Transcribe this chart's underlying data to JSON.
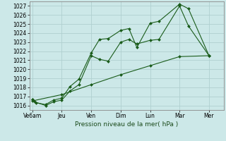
{
  "title": "",
  "xlabel": "Pression niveau de la mer( hPa )",
  "background_color": "#cce8e8",
  "grid_color": "#b0d0d0",
  "line_color": "#1a5c1a",
  "marker_color": "#1a5c1a",
  "ylim": [
    1015.5,
    1027.5
  ],
  "yticks": [
    1016,
    1017,
    1018,
    1019,
    1020,
    1021,
    1022,
    1023,
    1024,
    1025,
    1026,
    1027
  ],
  "x_labels": [
    "Ve6am",
    "Jeu",
    "Ven",
    "Dim",
    "Lun",
    "Mar",
    "Mer"
  ],
  "x_positions": [
    0,
    1,
    2,
    3,
    4,
    5,
    6
  ],
  "xlim": [
    -0.1,
    6.5
  ],
  "line1_x": [
    0.0,
    0.08,
    0.45,
    0.72,
    1.0,
    1.28,
    1.58,
    2.0,
    2.28,
    2.58,
    3.0,
    3.28,
    3.55,
    4.0,
    4.3,
    5.0,
    5.3,
    6.0
  ],
  "line1_y": [
    1016.7,
    1016.4,
    1016.0,
    1016.4,
    1016.6,
    1017.6,
    1018.3,
    1021.5,
    1021.1,
    1020.9,
    1023.0,
    1023.3,
    1022.8,
    1023.2,
    1023.3,
    1027.0,
    1024.8,
    1021.5
  ],
  "line2_x": [
    0.0,
    0.12,
    0.45,
    0.72,
    1.0,
    1.28,
    1.58,
    2.0,
    2.28,
    2.58,
    3.0,
    3.28,
    3.55,
    4.0,
    4.3,
    5.0,
    5.3,
    6.0
  ],
  "line2_y": [
    1016.7,
    1016.3,
    1016.1,
    1016.6,
    1016.8,
    1018.1,
    1018.9,
    1021.8,
    1023.3,
    1023.4,
    1024.3,
    1024.5,
    1022.4,
    1025.1,
    1025.3,
    1027.2,
    1026.7,
    1021.5
  ],
  "line3_x": [
    0.0,
    1.0,
    2.0,
    3.0,
    4.0,
    5.0,
    6.0
  ],
  "line3_y": [
    1016.5,
    1017.2,
    1018.3,
    1019.4,
    1020.4,
    1021.4,
    1021.5
  ],
  "tick_fontsize": 5.5,
  "xlabel_fontsize": 6.5,
  "linewidth": 0.8,
  "markersize": 2.0
}
